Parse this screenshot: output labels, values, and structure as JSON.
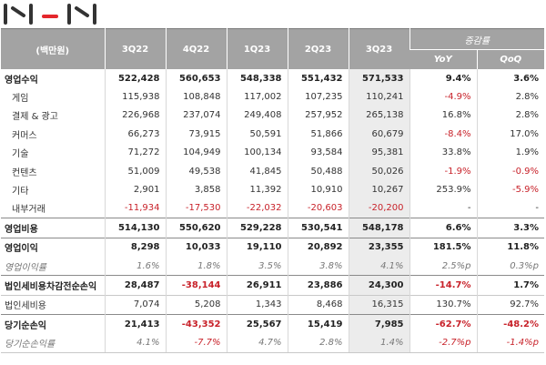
{
  "logo": {
    "text": "NHN",
    "accent_color": "#e4262c",
    "color": "#333333"
  },
  "colors": {
    "header_bg": "#a3a3a3",
    "highlight_col": "#ececec",
    "negative": "#c8222a"
  },
  "header": {
    "unit": "(백만원)",
    "periods": [
      "3Q22",
      "4Q22",
      "1Q23",
      "2Q23",
      "3Q23"
    ],
    "change_group": "증감률",
    "yoy": "YoY",
    "qoq": "QoQ"
  },
  "rows": [
    {
      "label": "영업수익",
      "values": [
        "522,428",
        "560,653",
        "548,338",
        "551,432",
        "571,533"
      ],
      "yoy": "9.4%",
      "qoq": "3.6%"
    },
    {
      "label": "게임",
      "values": [
        "115,938",
        "108,848",
        "117,002",
        "107,235",
        "110,241"
      ],
      "yoy": "-4.9%",
      "qoq": "2.8%"
    },
    {
      "label": "결제 & 광고",
      "values": [
        "226,968",
        "237,074",
        "249,408",
        "257,952",
        "265,138"
      ],
      "yoy": "16.8%",
      "qoq": "2.8%"
    },
    {
      "label": "커머스",
      "values": [
        "66,273",
        "73,915",
        "50,591",
        "51,866",
        "60,679"
      ],
      "yoy": "-8.4%",
      "qoq": "17.0%"
    },
    {
      "label": "기술",
      "values": [
        "71,272",
        "104,949",
        "100,134",
        "93,584",
        "95,381"
      ],
      "yoy": "33.8%",
      "qoq": "1.9%"
    },
    {
      "label": "컨텐츠",
      "values": [
        "51,009",
        "49,538",
        "41,845",
        "50,488",
        "50,026"
      ],
      "yoy": "-1.9%",
      "qoq": "-0.9%"
    },
    {
      "label": "기타",
      "values": [
        "2,901",
        "3,858",
        "11,392",
        "10,910",
        "10,267"
      ],
      "yoy": "253.9%",
      "qoq": "-5.9%"
    },
    {
      "label": "내부거래",
      "values": [
        "-11,934",
        "-17,530",
        "-22,032",
        "-20,603",
        "-20,200"
      ],
      "yoy": "-",
      "qoq": "-"
    },
    {
      "label": "영업비용",
      "values": [
        "514,130",
        "550,620",
        "529,228",
        "530,541",
        "548,178"
      ],
      "yoy": "6.6%",
      "qoq": "3.3%"
    },
    {
      "label": "영업이익",
      "values": [
        "8,298",
        "10,033",
        "19,110",
        "20,892",
        "23,355"
      ],
      "yoy": "181.5%",
      "qoq": "11.8%"
    },
    {
      "label": "영업이익률",
      "values": [
        "1.6%",
        "1.8%",
        "3.5%",
        "3.8%",
        "4.1%"
      ],
      "yoy": "2.5%p",
      "qoq": "0.3%p"
    },
    {
      "label": "법인세비용차감전순손익",
      "values": [
        "28,487",
        "-38,144",
        "26,911",
        "23,886",
        "24,300"
      ],
      "yoy": "-14.7%",
      "qoq": "1.7%"
    },
    {
      "label": "법인세비용",
      "values": [
        "7,074",
        "5,208",
        "1,343",
        "8,468",
        "16,315"
      ],
      "yoy": "130.7%",
      "qoq": "92.7%"
    },
    {
      "label": "당기순손익",
      "values": [
        "21,413",
        "-43,352",
        "25,567",
        "15,419",
        "7,985"
      ],
      "yoy": "-62.7%",
      "qoq": "-48.2%"
    },
    {
      "label": "당기순손익률",
      "values": [
        "4.1%",
        "-7.7%",
        "4.7%",
        "2.8%",
        "1.4%"
      ],
      "yoy": "-2.7%p",
      "qoq": "-1.4%p"
    }
  ]
}
